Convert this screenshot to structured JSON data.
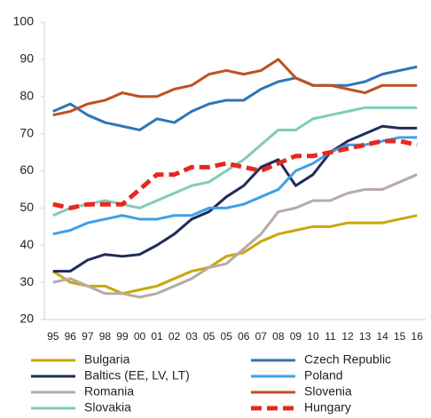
{
  "chart_data": {
    "type": "line",
    "categories": [
      "95",
      "96",
      "97",
      "98",
      "99",
      "00",
      "01",
      "02",
      "03",
      "05",
      "05",
      "06",
      "07",
      "08",
      "09",
      "10",
      "11",
      "12",
      "13",
      "14",
      "15",
      "16"
    ],
    "ylim": [
      20,
      100
    ],
    "yticks": [
      20,
      30,
      40,
      50,
      60,
      70,
      80,
      90,
      100
    ],
    "series": [
      {
        "name": "Bulgaria",
        "color": "#c9a80c",
        "values": [
          33,
          30,
          29,
          29,
          27,
          28,
          29,
          31,
          33,
          34,
          37,
          38,
          41,
          43,
          44,
          45,
          45,
          46,
          46,
          46,
          47,
          48
        ]
      },
      {
        "name": "Czech Republic",
        "color": "#2e75b6",
        "values": [
          76,
          78,
          75,
          73,
          72,
          71,
          74,
          73,
          76,
          78,
          79,
          79,
          82,
          84,
          85,
          83,
          83,
          83,
          84,
          86,
          87,
          88
        ]
      },
      {
        "name": "Baltics (EE, LV, LT)",
        "color": "#1f2d5a",
        "values": [
          33,
          33,
          36,
          37.5,
          37,
          37.5,
          40,
          43,
          47,
          49,
          53,
          56,
          61,
          63,
          56,
          59,
          65,
          68,
          70,
          72,
          71.5,
          71.5
        ]
      },
      {
        "name": "Poland",
        "color": "#3fa0e8",
        "values": [
          43,
          44,
          46,
          47,
          48,
          47,
          47,
          48,
          48,
          50,
          50,
          51,
          53,
          55,
          60,
          62,
          65,
          67,
          67,
          68,
          69,
          69
        ]
      },
      {
        "name": "Romania",
        "color": "#b8aaa5",
        "values": [
          30,
          31,
          29,
          27,
          27,
          26,
          27,
          29,
          31,
          34,
          35,
          39,
          43,
          49,
          50,
          52,
          52,
          54,
          55,
          55,
          57,
          59
        ]
      },
      {
        "name": "Slovenia",
        "color": "#c0501f",
        "values": [
          75,
          76,
          78,
          79,
          81,
          80,
          80,
          82,
          83,
          86,
          87,
          86,
          87,
          90,
          85,
          83,
          83,
          82,
          81,
          83,
          83,
          83
        ]
      },
      {
        "name": "Slovakia",
        "color": "#7fcdb5",
        "values": [
          48,
          50,
          51,
          52,
          51,
          50,
          52,
          54,
          56,
          57,
          60,
          63,
          67,
          71,
          71,
          74,
          75,
          76,
          77,
          77,
          77,
          77
        ]
      },
      {
        "name": "Hungary",
        "color": "#e8281e",
        "dashed": true,
        "values": [
          51,
          50,
          51,
          51,
          51,
          55,
          59,
          59,
          61,
          61,
          62,
          61,
          60,
          62,
          64,
          64,
          65,
          66,
          67,
          68,
          68,
          67
        ]
      }
    ]
  }
}
